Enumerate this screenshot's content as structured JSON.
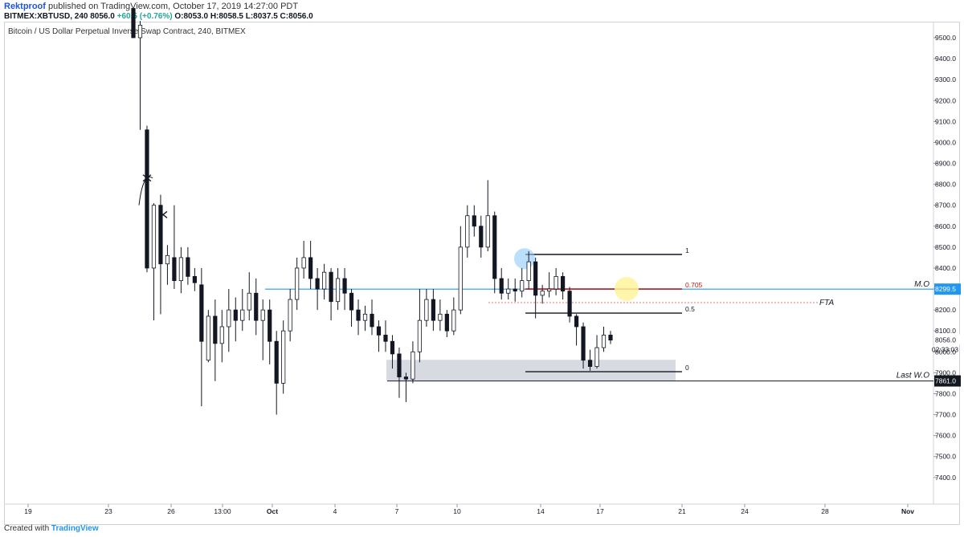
{
  "header": {
    "publisher": "Rektproof",
    "published_text": "published on TradingView.com, October 17, 2019 14:27:00 PDT",
    "symbol_line": "BITMEX:XBTUSD, 240",
    "last": "8056.0",
    "change": "+60.5 (+0.76%)",
    "ohlc": "O:8053.0 H:8058.5 L:8037.5 C:8056.0"
  },
  "footer": {
    "created_with": "Created with",
    "brand": "TradingView"
  },
  "colors": {
    "mo_line": "#2196f3",
    "fib_705": "#b71c1c",
    "box": "#d1d4dc",
    "highlight_yellow": "#fff59d",
    "highlight_blue": "#90caf9"
  },
  "chart_data": {
    "type": "candlestick",
    "title": "Bitcoin / US Dollar Perpetual Inverse Swap Contract, 240, BITMEX",
    "ylim": [
      7350,
      9580
    ],
    "y_ticks": [
      "9500.0",
      "9400.0",
      "9300.0",
      "9200.0",
      "9100.0",
      "9000.0",
      "8900.0",
      "8800.0",
      "8700.0",
      "8600.0",
      "8500.0",
      "8400.0",
      "8300.0",
      "8200.0",
      "8100.0",
      "8000.0",
      "7900.0",
      "7800.0",
      "7700.0",
      "7600.0",
      "7500.0",
      "7400.0"
    ],
    "x_ticks": [
      "19",
      "23",
      "26",
      "13:00",
      "Oct",
      "4",
      "7",
      "10",
      "14",
      "17",
      "21",
      "24",
      "28",
      "Nov"
    ],
    "price_labels": {
      "current": "8056.0",
      "countdown": "02:33:03",
      "mo": "8299.5",
      "last_wo": "7861.0"
    },
    "fib_levels": [
      {
        "label": "1",
        "value": 8465
      },
      {
        "label": "0.705",
        "value": 8300
      },
      {
        "label": "0.5",
        "value": 8185
      },
      {
        "label": "0",
        "value": 7905
      }
    ],
    "annotations": {
      "mo": "M.O",
      "fta": "FTA",
      "last_wo": "Last W.O"
    },
    "zones": [
      {
        "low": 7863,
        "high": 7962
      }
    ],
    "anchors": [
      [
        9640,
        9500,
        9640,
        9500
      ],
      [
        9500,
        9560,
        9580,
        9060
      ],
      [
        9060,
        8400,
        9080,
        8380
      ],
      [
        8400,
        8700,
        8710,
        8150
      ],
      [
        8700,
        8420,
        8750,
        8180
      ],
      [
        8420,
        8460,
        8510,
        8320
      ],
      [
        8450,
        8340,
        8700,
        8300
      ],
      [
        8340,
        8450,
        8500,
        8280
      ],
      [
        8450,
        8360,
        8500,
        8320
      ],
      [
        8360,
        8330,
        8400,
        8290
      ],
      [
        8320,
        8050,
        8400,
        7740
      ],
      [
        7960,
        8170,
        8200,
        7950
      ],
      [
        8170,
        8040,
        8250,
        7860
      ],
      [
        8040,
        8120,
        8200,
        7950
      ],
      [
        8120,
        8200,
        8300,
        8000
      ],
      [
        8200,
        8150,
        8260,
        8050
      ],
      [
        8150,
        8200,
        8300,
        8100
      ],
      [
        8200,
        8280,
        8380,
        8150
      ],
      [
        8280,
        8150,
        8350,
        8080
      ],
      [
        8150,
        8200,
        8250,
        7960
      ],
      [
        8200,
        8050,
        8250,
        7940
      ],
      [
        8050,
        7850,
        8100,
        7700
      ],
      [
        7850,
        8100,
        8150,
        7800
      ],
      [
        8100,
        8250,
        8300,
        8050
      ],
      [
        8250,
        8400,
        8450,
        8200
      ],
      [
        8400,
        8450,
        8530,
        8350
      ],
      [
        8450,
        8350,
        8530,
        8300
      ],
      [
        8350,
        8300,
        8400,
        8200
      ],
      [
        8300,
        8380,
        8420,
        8250
      ],
      [
        8380,
        8240,
        8400,
        8150
      ],
      [
        8240,
        8350,
        8400,
        8200
      ],
      [
        8350,
        8280,
        8400,
        8200
      ],
      [
        8280,
        8200,
        8300,
        8120
      ],
      [
        8200,
        8150,
        8250,
        8080
      ],
      [
        8150,
        8180,
        8220,
        8100
      ],
      [
        8180,
        8120,
        8250,
        8080
      ],
      [
        8120,
        8080,
        8150,
        8000
      ],
      [
        8080,
        8050,
        8150,
        8000
      ],
      [
        8050,
        7990,
        8080,
        7920
      ],
      [
        7990,
        7880,
        8020,
        7780
      ],
      [
        7880,
        7870,
        7900,
        7760
      ],
      [
        7870,
        8000,
        8050,
        7850
      ],
      [
        8000,
        8150,
        8300,
        7950
      ],
      [
        8150,
        8250,
        8300,
        8120
      ],
      [
        8250,
        8150,
        8300,
        8100
      ],
      [
        8150,
        8180,
        8250,
        8100
      ],
      [
        8180,
        8100,
        8200,
        8070
      ],
      [
        8100,
        8200,
        8260,
        8080
      ],
      [
        8200,
        8500,
        8600,
        8180
      ],
      [
        8500,
        8650,
        8700,
        8450
      ],
      [
        8650,
        8600,
        8700,
        8550
      ],
      [
        8600,
        8500,
        8650,
        8450
      ],
      [
        8500,
        8650,
        8820,
        8480
      ],
      [
        8650,
        8350,
        8670,
        8280
      ],
      [
        8350,
        8280,
        8400,
        8250
      ],
      [
        8280,
        8300,
        8350,
        8250
      ],
      [
        8300,
        8290,
        8350,
        8240
      ],
      [
        8290,
        8340,
        8400,
        8260
      ],
      [
        8340,
        8430,
        8480,
        8300
      ],
      [
        8430,
        8270,
        8450,
        8160
      ],
      [
        8270,
        8290,
        8320,
        8230
      ],
      [
        8290,
        8300,
        8380,
        8260
      ],
      [
        8300,
        8360,
        8400,
        8270
      ],
      [
        8360,
        8290,
        8380,
        8250
      ],
      [
        8290,
        8170,
        8310,
        8140
      ],
      [
        8170,
        8120,
        8180,
        8030
      ],
      [
        8120,
        7960,
        8140,
        7920
      ],
      [
        7960,
        7930,
        8010,
        7910
      ],
      [
        7930,
        8020,
        8080,
        7920
      ],
      [
        8020,
        8080,
        8120,
        8000
      ],
      [
        8080,
        8056,
        8100,
        8037
      ]
    ]
  }
}
